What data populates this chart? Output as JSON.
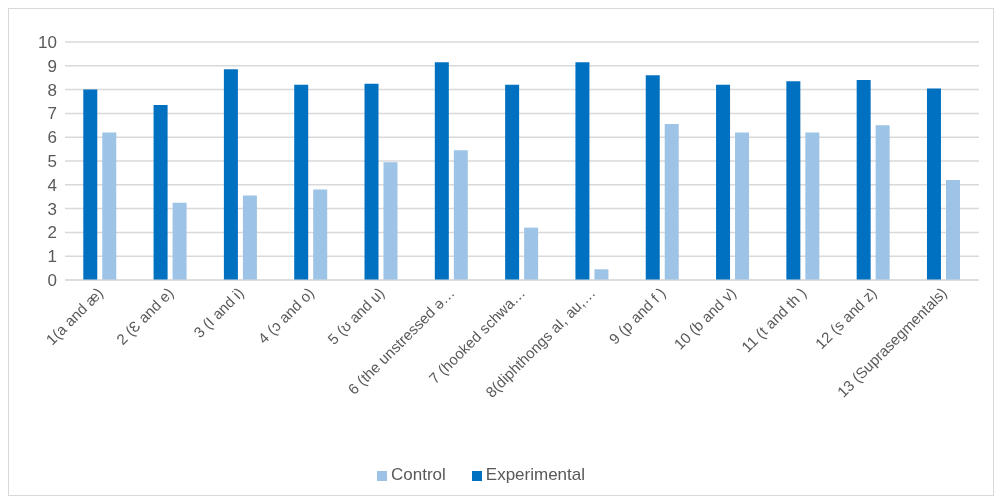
{
  "chart_data": {
    "type": "bar",
    "categories": [
      "1(a and æ)",
      "2 (Ɛ and e)",
      "3 (I and i)",
      "4 (ɔ and o)",
      "5 (ʊ and u)",
      "6 (the unstressed ə…",
      "7 (hooked schwa…",
      "8(diphthongs aI, au,…",
      "9 (p and f )",
      "10 (b and v)",
      "11 (t and th )",
      "12 (s and z)",
      "13 (Suprasegmentals)"
    ],
    "series": [
      {
        "name": "Experimental",
        "color": "#0070c0",
        "values": [
          8.0,
          7.35,
          8.85,
          8.2,
          8.25,
          9.15,
          8.2,
          9.15,
          8.6,
          8.2,
          8.35,
          8.4,
          8.05
        ]
      },
      {
        "name": "Control",
        "color": "#9dc3e6",
        "values": [
          6.2,
          3.25,
          3.55,
          3.8,
          4.95,
          5.45,
          2.2,
          0.45,
          6.55,
          6.2,
          6.2,
          6.5,
          4.2
        ]
      }
    ],
    "ylim": [
      0,
      10
    ],
    "yticks": [
      0,
      1,
      2,
      3,
      4,
      5,
      6,
      7,
      8,
      9,
      10
    ],
    "grid": "y",
    "legend": "bottom"
  }
}
